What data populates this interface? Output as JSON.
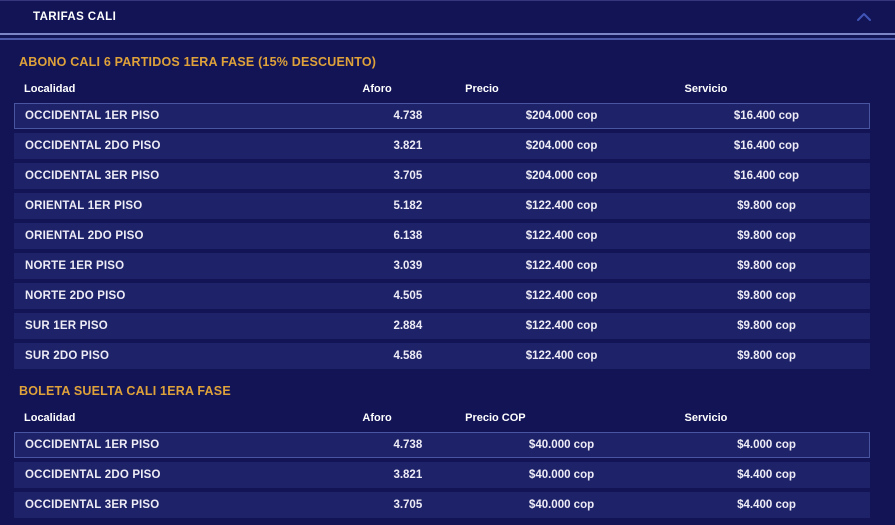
{
  "accordion": {
    "title": "TARIFAS CALI",
    "chevron_icon": "chevron-up-icon"
  },
  "colors": {
    "page_background": "#121456",
    "row_background": "#1e2369",
    "section_title_gold": "#dfa23a",
    "divider_blue": "#7e85c6",
    "chevron_blue": "#4055b5",
    "row_highlight_border": "#4a55a2",
    "text_white": "#ffffff"
  },
  "sections": [
    {
      "title": "ABONO CALI 6 PARTIDOS 1ERA FASE (15% DESCUENTO)",
      "columns": [
        "Localidad",
        "Aforo",
        "Precio",
        "Servicio"
      ],
      "rows": [
        [
          "OCCIDENTAL 1ER PISO",
          "4.738",
          "$204.000 cop",
          "$16.400 cop"
        ],
        [
          "OCCIDENTAL 2DO PISO",
          "3.821",
          "$204.000 cop",
          "$16.400 cop"
        ],
        [
          "OCCIDENTAL 3ER PISO",
          "3.705",
          "$204.000 cop",
          "$16.400 cop"
        ],
        [
          "ORIENTAL 1ER PISO",
          "5.182",
          "$122.400 cop",
          "$9.800 cop"
        ],
        [
          "ORIENTAL 2DO PISO",
          "6.138",
          "$122.400 cop",
          "$9.800 cop"
        ],
        [
          "NORTE 1ER PISO",
          "3.039",
          "$122.400 cop",
          "$9.800 cop"
        ],
        [
          "NORTE 2DO PISO",
          "4.505",
          "$122.400 cop",
          "$9.800 cop"
        ],
        [
          "SUR 1ER PISO",
          "2.884",
          "$122.400 cop",
          "$9.800 cop"
        ],
        [
          "SUR 2DO PISO",
          "4.586",
          "$122.400 cop",
          "$9.800 cop"
        ]
      ]
    },
    {
      "title": "BOLETA SUELTA CALI 1ERA FASE",
      "columns": [
        "Localidad",
        "Aforo",
        "Precio COP",
        "Servicio"
      ],
      "rows": [
        [
          "OCCIDENTAL 1ER PISO",
          "4.738",
          "$40.000 cop",
          "$4.000 cop"
        ],
        [
          "OCCIDENTAL 2DO PISO",
          "3.821",
          "$40.000 cop",
          "$4.400 cop"
        ],
        [
          "OCCIDENTAL 3ER PISO",
          "3.705",
          "$40.000 cop",
          "$4.400 cop"
        ]
      ]
    }
  ]
}
